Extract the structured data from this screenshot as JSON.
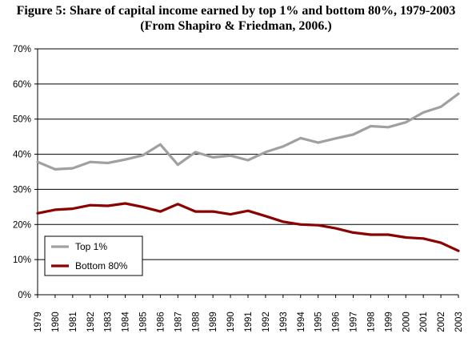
{
  "figure": {
    "title_line1": "Figure 5: Share of capital income earned by top 1% and bottom 80%, 1979-2003",
    "title_line2": "(From Shapiro & Friedman, 2006.)"
  },
  "chart_data": {
    "type": "line",
    "title": "Figure 5: Share of capital income earned by top 1% and bottom 80%, 1979-2003",
    "subtitle": "(From Shapiro & Friedman, 2006.)",
    "xlabel": "",
    "ylabel": "",
    "x": [
      "1979",
      "1980",
      "1981",
      "1982",
      "1983",
      "1984",
      "1985",
      "1986",
      "1987",
      "1988",
      "1989",
      "1990",
      "1991",
      "1992",
      "1993",
      "1994",
      "1995",
      "1996",
      "1997",
      "1998",
      "1999",
      "2000",
      "2001",
      "2002",
      "2003"
    ],
    "ylim": [
      0,
      70
    ],
    "yticks": [
      0,
      10,
      20,
      30,
      40,
      50,
      60,
      70
    ],
    "ytick_labels": [
      "0%",
      "10%",
      "20%",
      "30%",
      "40%",
      "50%",
      "60%",
      "70%"
    ],
    "grid": "horizontal",
    "legend_position": "bottom-left",
    "series": [
      {
        "name": "Top 1%",
        "color": "#a0a0a0",
        "values": [
          37.8,
          35.7,
          36.0,
          37.8,
          37.5,
          38.5,
          39.7,
          42.8,
          37.0,
          40.6,
          39.1,
          39.6,
          38.3,
          40.6,
          42.2,
          44.6,
          43.3,
          44.5,
          45.6,
          48.0,
          47.7,
          49.1,
          51.9,
          53.5,
          57.2
        ]
      },
      {
        "name": "Bottom 80%",
        "color": "#8b0000",
        "values": [
          23.2,
          24.2,
          24.5,
          25.5,
          25.3,
          26.0,
          25.0,
          23.7,
          25.8,
          23.7,
          23.7,
          22.9,
          23.9,
          22.4,
          20.8,
          20.0,
          19.8,
          18.9,
          17.7,
          17.1,
          17.1,
          16.3,
          16.0,
          14.8,
          12.5
        ]
      }
    ]
  }
}
